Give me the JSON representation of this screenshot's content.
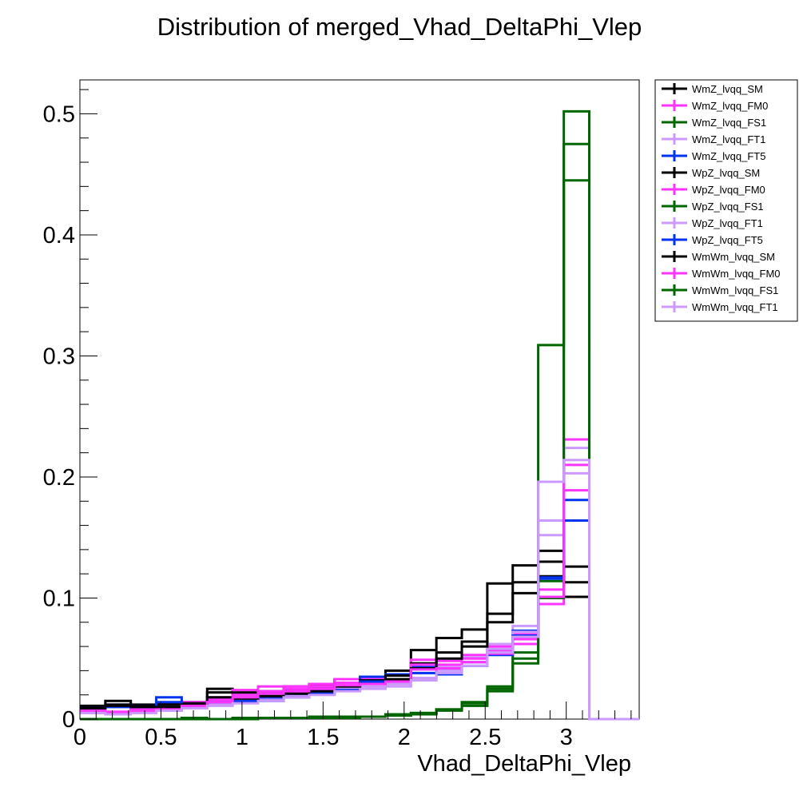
{
  "chart_data": {
    "type": "line",
    "title": "Distribution of merged_Vhad_DeltaPhi_Vlep",
    "xlabel": "Vhad_DeltaPhi_Vlep",
    "ylabel": "",
    "xlim": [
      0,
      3.45
    ],
    "ylim": [
      0,
      0.528
    ],
    "x_ticks": [
      0,
      0.5,
      1,
      1.5,
      2,
      2.5,
      3
    ],
    "x_tick_labels": [
      "0",
      "0.5",
      "1",
      "1.5",
      "2",
      "2.5",
      "3"
    ],
    "y_ticks": [
      0,
      0.1,
      0.2,
      0.3,
      0.4,
      0.5
    ],
    "y_tick_labels": [
      "0",
      "0.1",
      "0.2",
      "0.3",
      "0.4",
      "0.5"
    ],
    "histogram_style": "step",
    "bin_edges": [
      0.0,
      0.157,
      0.314,
      0.471,
      0.628,
      0.785,
      0.942,
      1.099,
      1.257,
      1.414,
      1.571,
      1.728,
      1.885,
      2.042,
      2.199,
      2.356,
      2.513,
      2.67,
      2.827,
      2.985,
      3.142
    ],
    "legend_position": "right, outside plot area, top",
    "series": [
      {
        "name": "WmZ_lvqq_SM",
        "color": "#000000",
        "values": [
          0.011,
          0.015,
          0.012,
          0.013,
          0.014,
          0.025,
          0.022,
          0.023,
          0.027,
          0.028,
          0.033,
          0.034,
          0.04,
          0.057,
          0.067,
          0.074,
          0.112,
          0.127,
          0.139,
          0.126
        ]
      },
      {
        "name": "WmZ_lvqq_FM0",
        "color": "#ff33ff",
        "values": [
          0.007,
          0.006,
          0.008,
          0.01,
          0.014,
          0.018,
          0.024,
          0.027,
          0.027,
          0.029,
          0.033,
          0.033,
          0.036,
          0.049,
          0.048,
          0.053,
          0.06,
          0.07,
          0.107,
          0.231
        ]
      },
      {
        "name": "WmZ_lvqq_FS1",
        "color": "#006600",
        "values": [
          0.0,
          0.0,
          0.0,
          0.0,
          0.001,
          0.0,
          0.001,
          0.001,
          0.001,
          0.002,
          0.002,
          0.002,
          0.004,
          0.005,
          0.008,
          0.014,
          0.027,
          0.055,
          0.114,
          0.502
        ]
      },
      {
        "name": "WmZ_lvqq_FT1",
        "color": "#cc99ff",
        "values": [
          0.006,
          0.005,
          0.006,
          0.008,
          0.012,
          0.013,
          0.016,
          0.018,
          0.022,
          0.024,
          0.028,
          0.03,
          0.032,
          0.038,
          0.044,
          0.051,
          0.062,
          0.077,
          0.164,
          0.224
        ]
      },
      {
        "name": "WmZ_lvqq_FT5",
        "color": "#0033ee",
        "values": [
          0.01,
          0.012,
          0.011,
          0.018,
          0.012,
          0.016,
          0.015,
          0.017,
          0.02,
          0.023,
          0.026,
          0.035,
          0.037,
          0.043,
          0.041,
          0.047,
          0.057,
          0.073,
          0.116,
          0.181
        ]
      },
      {
        "name": "WpZ_lvqq_SM",
        "color": "#000000",
        "values": [
          0.01,
          0.012,
          0.011,
          0.012,
          0.013,
          0.022,
          0.02,
          0.021,
          0.024,
          0.026,
          0.03,
          0.032,
          0.036,
          0.046,
          0.055,
          0.064,
          0.087,
          0.113,
          0.118,
          0.101
        ]
      },
      {
        "name": "WpZ_lvqq_FM0",
        "color": "#ff33ff",
        "values": [
          0.006,
          0.006,
          0.007,
          0.009,
          0.012,
          0.016,
          0.02,
          0.023,
          0.025,
          0.027,
          0.03,
          0.031,
          0.033,
          0.045,
          0.045,
          0.05,
          0.056,
          0.066,
          0.095,
          0.189
        ]
      },
      {
        "name": "WpZ_lvqq_FS1",
        "color": "#006600",
        "values": [
          0.0,
          0.0,
          0.0,
          0.0,
          0.0,
          0.0,
          0.0,
          0.001,
          0.001,
          0.001,
          0.001,
          0.002,
          0.003,
          0.004,
          0.007,
          0.011,
          0.023,
          0.046,
          0.1,
          0.475
        ]
      },
      {
        "name": "WpZ_lvqq_FT1",
        "color": "#cc99ff",
        "values": [
          0.005,
          0.005,
          0.006,
          0.007,
          0.01,
          0.012,
          0.014,
          0.016,
          0.019,
          0.021,
          0.025,
          0.027,
          0.029,
          0.034,
          0.04,
          0.047,
          0.058,
          0.072,
          0.152,
          0.203
        ]
      },
      {
        "name": "WpZ_lvqq_FT5",
        "color": "#0033ee",
        "values": [
          0.009,
          0.01,
          0.01,
          0.014,
          0.011,
          0.014,
          0.014,
          0.015,
          0.018,
          0.021,
          0.024,
          0.031,
          0.033,
          0.038,
          0.037,
          0.044,
          0.053,
          0.069,
          0.117,
          0.164
        ]
      },
      {
        "name": "WmWm_lvqq_SM",
        "color": "#000000",
        "values": [
          0.009,
          0.011,
          0.01,
          0.01,
          0.012,
          0.018,
          0.017,
          0.019,
          0.021,
          0.023,
          0.027,
          0.029,
          0.033,
          0.042,
          0.05,
          0.06,
          0.08,
          0.104,
          0.13,
          0.113
        ]
      },
      {
        "name": "WmWm_lvqq_FM0",
        "color": "#ff33ff",
        "values": [
          0.006,
          0.005,
          0.006,
          0.008,
          0.011,
          0.014,
          0.018,
          0.021,
          0.023,
          0.025,
          0.028,
          0.029,
          0.031,
          0.041,
          0.042,
          0.047,
          0.054,
          0.062,
          0.101,
          0.21
        ]
      },
      {
        "name": "WmWm_lvqq_FS1",
        "color": "#006600",
        "values": [
          0.0,
          0.0,
          0.0,
          0.0,
          0.0,
          0.0,
          0.001,
          0.001,
          0.001,
          0.001,
          0.002,
          0.002,
          0.003,
          0.005,
          0.008,
          0.013,
          0.025,
          0.05,
          0.309,
          0.445
        ]
      },
      {
        "name": "WmWm_lvqq_FT1",
        "color": "#cc99ff",
        "values": [
          0.005,
          0.004,
          0.005,
          0.007,
          0.009,
          0.011,
          0.013,
          0.015,
          0.018,
          0.02,
          0.023,
          0.025,
          0.027,
          0.032,
          0.038,
          0.044,
          0.055,
          0.068,
          0.196,
          0.214
        ]
      }
    ]
  }
}
